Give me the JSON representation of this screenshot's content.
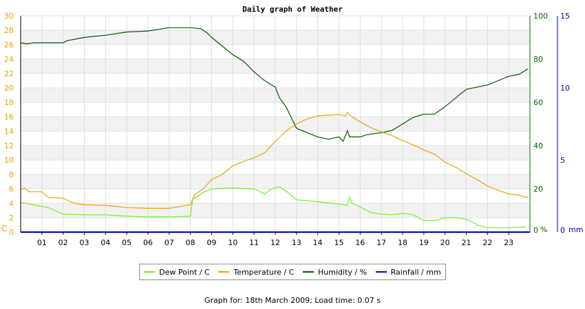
{
  "chart_data": {
    "type": "line",
    "title": "Daily graph of Weather",
    "left_axis_unit": "C",
    "right_axis_unit_pct": "%",
    "right_axis_unit_mm": "mm",
    "x_ticks": [
      "01",
      "02",
      "03",
      "04",
      "05",
      "06",
      "07",
      "08",
      "09",
      "10",
      "11",
      "12",
      "13",
      "14",
      "15",
      "16",
      "17",
      "18",
      "19",
      "20",
      "21",
      "22",
      "23"
    ],
    "x_range": [
      0,
      24
    ],
    "left_axis": {
      "min": 0,
      "max": 30,
      "step": 2,
      "color": "#f0a000"
    },
    "humidity_axis": {
      "min": 0,
      "max": 100,
      "ticks": [
        0,
        20,
        40,
        60,
        80,
        100
      ],
      "color": "#006600"
    },
    "rain_axis": {
      "min": 0,
      "max": 15,
      "ticks": [
        0,
        5,
        10,
        15
      ],
      "color": "#0000aa"
    },
    "series": [
      {
        "name": "Dew Point / C",
        "color": "#77ee22",
        "points": [
          [
            0,
            4.1
          ],
          [
            0.2,
            4.0
          ],
          [
            0.6,
            3.8
          ],
          [
            1.3,
            3.4
          ],
          [
            2.0,
            2.5
          ],
          [
            3,
            2.4
          ],
          [
            4,
            2.4
          ],
          [
            5,
            2.2
          ],
          [
            6,
            2.1
          ],
          [
            7,
            2.1
          ],
          [
            8,
            2.2
          ],
          [
            8.1,
            4.5
          ],
          [
            8.6,
            5.5
          ],
          [
            9.0,
            6.0
          ],
          [
            10,
            6.1
          ],
          [
            11,
            6.0
          ],
          [
            11.5,
            5.3
          ],
          [
            11.8,
            6.0
          ],
          [
            12.2,
            6.3
          ],
          [
            12.6,
            5.5
          ],
          [
            13,
            4.5
          ],
          [
            14,
            4.2
          ],
          [
            15,
            3.9
          ],
          [
            15.4,
            3.7
          ],
          [
            15.5,
            4.9
          ],
          [
            15.6,
            4.0
          ],
          [
            16,
            3.5
          ],
          [
            16.5,
            2.7
          ],
          [
            17,
            2.5
          ],
          [
            17.5,
            2.4
          ],
          [
            18,
            2.6
          ],
          [
            18.5,
            2.4
          ],
          [
            19,
            1.6
          ],
          [
            19.5,
            1.6
          ],
          [
            20,
            2.0
          ],
          [
            20.5,
            2.0
          ],
          [
            21,
            1.8
          ],
          [
            21.6,
            0.9
          ],
          [
            22,
            0.6
          ],
          [
            22.5,
            0.6
          ],
          [
            23,
            0.6
          ],
          [
            23.8,
            0.7
          ]
        ]
      },
      {
        "name": "Temperature / C",
        "color": "#f0a000",
        "points": [
          [
            0,
            5.9
          ],
          [
            0.2,
            6.1
          ],
          [
            0.4,
            5.6
          ],
          [
            1,
            5.6
          ],
          [
            1.3,
            4.8
          ],
          [
            2,
            4.7
          ],
          [
            2.5,
            4.0
          ],
          [
            3,
            3.8
          ],
          [
            4,
            3.7
          ],
          [
            5,
            3.4
          ],
          [
            6,
            3.3
          ],
          [
            7,
            3.3
          ],
          [
            8,
            3.8
          ],
          [
            8.2,
            5.2
          ],
          [
            8.6,
            6.0
          ],
          [
            9.0,
            7.3
          ],
          [
            9.5,
            8.0
          ],
          [
            10,
            9.2
          ],
          [
            10.5,
            9.8
          ],
          [
            11,
            10.3
          ],
          [
            11.5,
            11.0
          ],
          [
            12,
            12.6
          ],
          [
            12.5,
            14.0
          ],
          [
            13,
            15.0
          ],
          [
            13.5,
            15.7
          ],
          [
            14,
            16.1
          ],
          [
            14.5,
            16.2
          ],
          [
            15,
            16.3
          ],
          [
            15.3,
            16.1
          ],
          [
            15.4,
            16.6
          ],
          [
            15.6,
            16.0
          ],
          [
            16,
            15.3
          ],
          [
            16.5,
            14.5
          ],
          [
            17,
            13.9
          ],
          [
            17.5,
            13.4
          ],
          [
            18,
            12.7
          ],
          [
            18.5,
            12.1
          ],
          [
            19,
            11.4
          ],
          [
            19.5,
            10.8
          ],
          [
            20,
            9.7
          ],
          [
            20.5,
            9.0
          ],
          [
            21,
            8.1
          ],
          [
            21.5,
            7.3
          ],
          [
            22,
            6.4
          ],
          [
            22.5,
            5.8
          ],
          [
            23,
            5.3
          ],
          [
            23.5,
            5.1
          ],
          [
            23.9,
            4.8
          ]
        ]
      },
      {
        "name": "Humidity / %",
        "color": "#005500",
        "points": [
          [
            0,
            87.5
          ],
          [
            0.3,
            87.0
          ],
          [
            0.6,
            87.5
          ],
          [
            1,
            87.5
          ],
          [
            2,
            87.5
          ],
          [
            2.2,
            88.5
          ],
          [
            3,
            90
          ],
          [
            4,
            91
          ],
          [
            5,
            92.5
          ],
          [
            6,
            93
          ],
          [
            7,
            94.5
          ],
          [
            8,
            94.5
          ],
          [
            8.5,
            94
          ],
          [
            8.8,
            92
          ],
          [
            9,
            90
          ],
          [
            9.5,
            86
          ],
          [
            10,
            82
          ],
          [
            10.5,
            79
          ],
          [
            11,
            74
          ],
          [
            11.5,
            70
          ],
          [
            12,
            67
          ],
          [
            12.2,
            62
          ],
          [
            12.5,
            58
          ],
          [
            12.8,
            52
          ],
          [
            13,
            48
          ],
          [
            13.5,
            46
          ],
          [
            14,
            44
          ],
          [
            14.5,
            43
          ],
          [
            15,
            44
          ],
          [
            15.2,
            42
          ],
          [
            15.4,
            47
          ],
          [
            15.5,
            44
          ],
          [
            16,
            44
          ],
          [
            16.3,
            45
          ],
          [
            17,
            46
          ],
          [
            17.5,
            47
          ],
          [
            18,
            50
          ],
          [
            18.5,
            53
          ],
          [
            19,
            54.5
          ],
          [
            19.5,
            54.5
          ],
          [
            20,
            58
          ],
          [
            20.5,
            62
          ],
          [
            21,
            66
          ],
          [
            21.5,
            67
          ],
          [
            22,
            68
          ],
          [
            22.5,
            70
          ],
          [
            23,
            72
          ],
          [
            23.5,
            73
          ],
          [
            23.9,
            75.5
          ]
        ]
      },
      {
        "name": "Rainfall / mm",
        "color": "#0000aa",
        "points": [
          [
            0,
            0
          ],
          [
            24,
            0
          ]
        ]
      }
    ],
    "legend_position": "bottom",
    "footer": "Graph for: 18th March 2009; Load time: 0.07 s"
  }
}
